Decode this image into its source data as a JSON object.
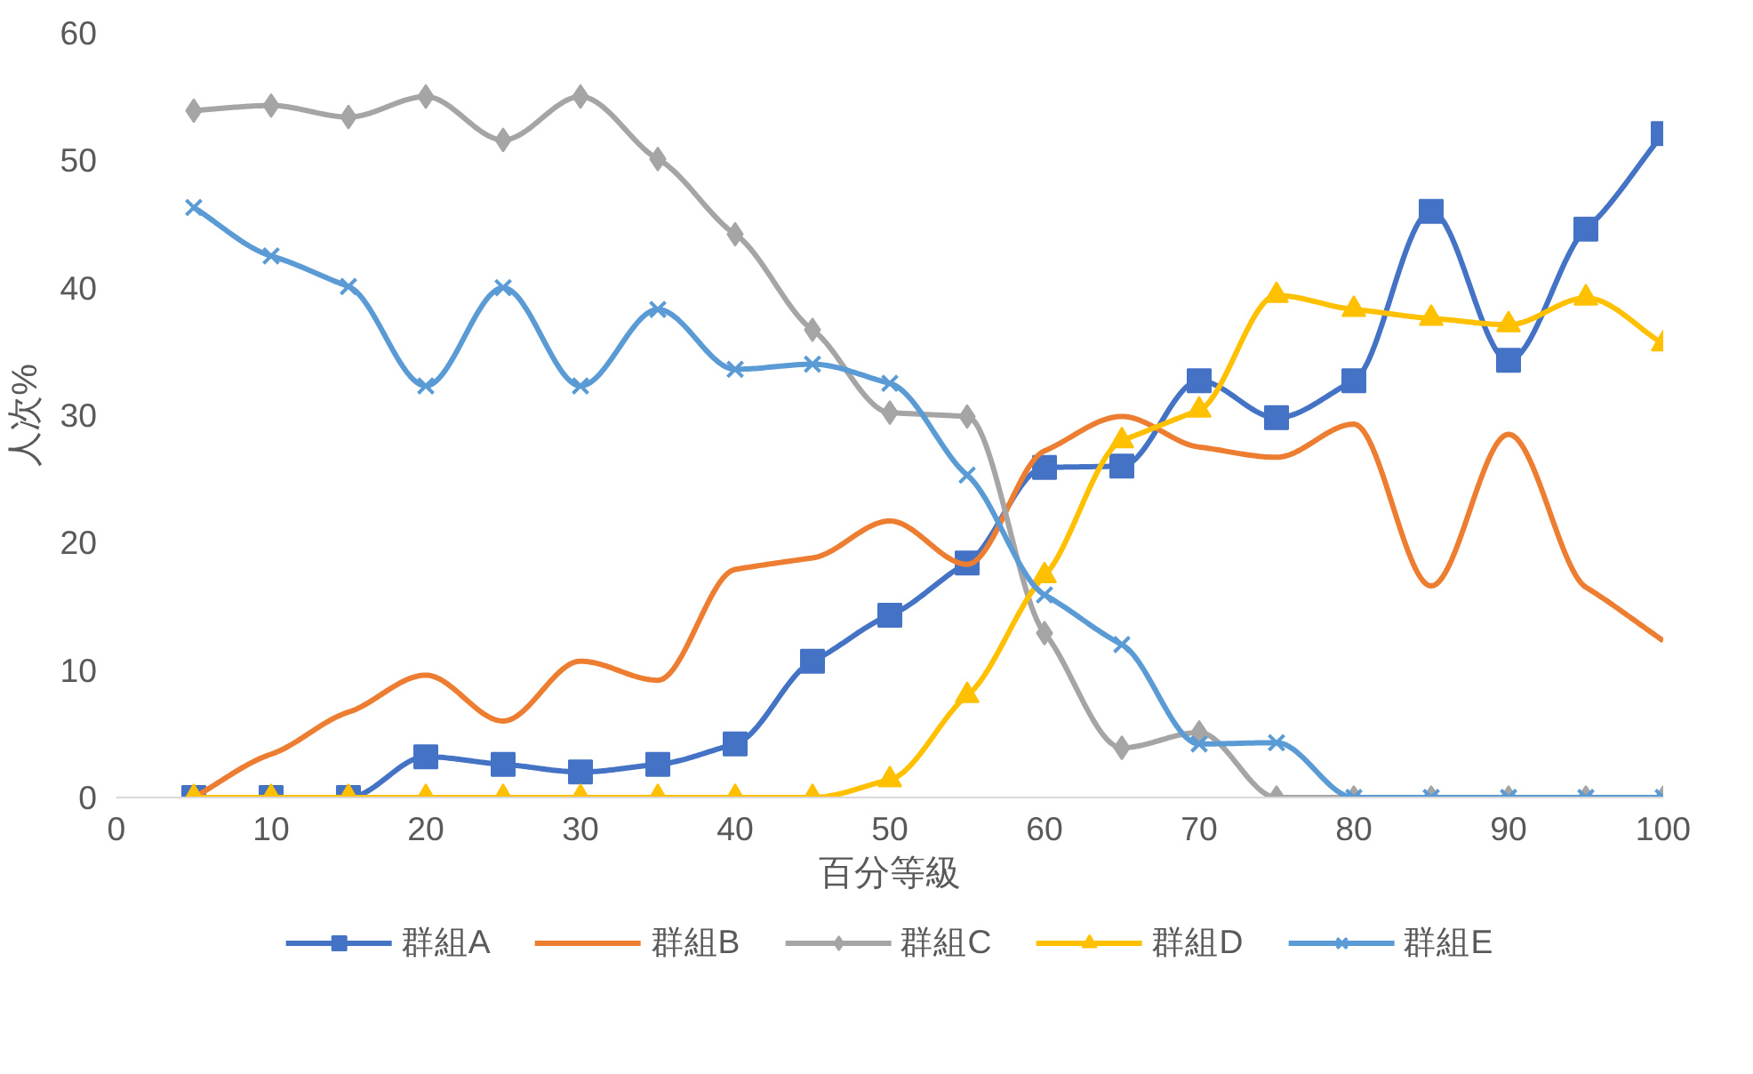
{
  "chart_data": {
    "type": "line",
    "xlabel": "百分等級",
    "ylabel": "人次%",
    "x": [
      5,
      10,
      15,
      20,
      25,
      30,
      35,
      40,
      45,
      50,
      55,
      60,
      65,
      70,
      75,
      80,
      85,
      90,
      95,
      100
    ],
    "xlim": [
      0,
      100
    ],
    "xticks": [
      0,
      10,
      20,
      30,
      40,
      50,
      60,
      70,
      80,
      90,
      100
    ],
    "ylim": [
      0,
      60
    ],
    "yticks": [
      0,
      10,
      20,
      30,
      40,
      50,
      60
    ],
    "grid": false,
    "legend": "bottom",
    "series": [
      {
        "name": "群組A",
        "color": "#4472c4",
        "marker": "square",
        "values": [
          0,
          0,
          0,
          3.2,
          2.6,
          2.0,
          2.6,
          4.2,
          10.7,
          14.3,
          18.4,
          25.9,
          26.0,
          32.7,
          29.8,
          32.7,
          46.0,
          34.3,
          44.6,
          52.1
        ]
      },
      {
        "name": "群組B",
        "color": "#ed7d31",
        "marker": "none",
        "values": [
          0,
          3.4,
          6.7,
          9.6,
          6.0,
          10.7,
          9.2,
          17.9,
          18.8,
          21.7,
          18.3,
          27.2,
          29.9,
          27.5,
          26.7,
          29.3,
          16.6,
          28.5,
          16.5,
          12.3
        ]
      },
      {
        "name": "群組C",
        "color": "#a5a5a5",
        "marker": "diamond",
        "values": [
          53.9,
          54.3,
          53.4,
          55.0,
          51.6,
          55.0,
          50.1,
          44.2,
          36.7,
          30.2,
          29.9,
          12.9,
          3.9,
          5.1,
          0,
          0,
          0,
          0,
          0,
          0
        ]
      },
      {
        "name": "群組D",
        "color": "#ffc000",
        "marker": "triangle",
        "values": [
          0,
          0,
          0,
          0,
          0,
          0,
          0,
          0,
          0,
          1.4,
          8.0,
          17.4,
          28.0,
          30.4,
          39.4,
          38.3,
          37.6,
          37.1,
          39.2,
          35.6
        ]
      },
      {
        "name": "群組E",
        "color": "#5b9bd5",
        "marker": "cross",
        "values": [
          46.3,
          42.5,
          40.1,
          32.3,
          40.0,
          32.3,
          38.3,
          33.6,
          34.0,
          32.5,
          25.3,
          15.9,
          12.0,
          4.2,
          4.3,
          0,
          0,
          0,
          0,
          0
        ]
      }
    ]
  }
}
